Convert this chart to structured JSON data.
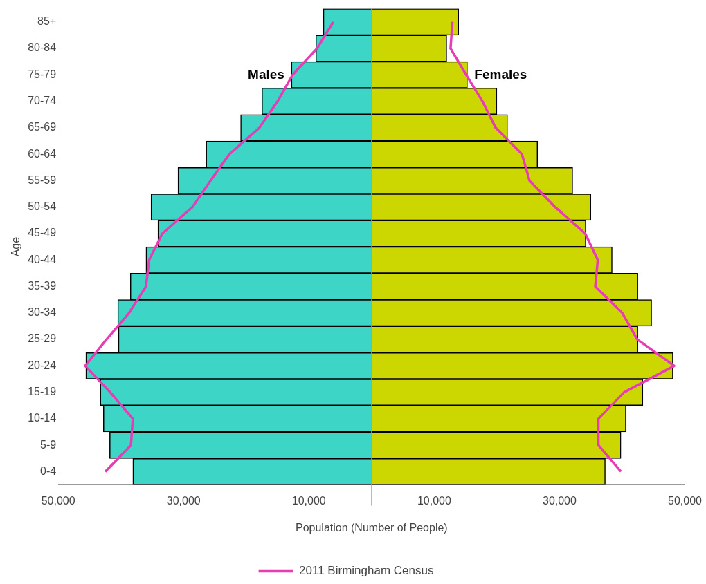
{
  "chart_data": {
    "type": "bar",
    "orientation": "horizontal",
    "stacked": true,
    "categories": [
      "85+",
      "80-84",
      "75-79",
      "70-74",
      "65-69",
      "60-64",
      "55-59",
      "50-54",
      "45-49",
      "40-44",
      "35-39",
      "30-34",
      "25-29",
      "20-24",
      "15-19",
      "10-14",
      "5-9",
      "0-4"
    ],
    "series": [
      {
        "name": "Males",
        "color": "#3dd6c6",
        "values": [
          -7700,
          -8900,
          -12800,
          -17500,
          -20900,
          -26400,
          -30900,
          -35200,
          -34100,
          -36000,
          -38500,
          -40500,
          -40400,
          -45600,
          -43300,
          -42800,
          -41800,
          -38100
        ]
      },
      {
        "name": "Females",
        "color": "#ccd600",
        "values": [
          13900,
          12000,
          15300,
          20000,
          21700,
          26500,
          32100,
          35000,
          34200,
          38400,
          42500,
          44700,
          42500,
          48100,
          43300,
          40600,
          39800,
          37300
        ]
      },
      {
        "name": "2011 Birmingham Census",
        "type": "line",
        "color": "#e83cb4",
        "values": [
          -6100,
          -8700,
          -12600,
          -15000,
          -17900,
          -22700,
          -25700,
          -28600,
          -33400,
          -35500,
          -36000,
          -38700,
          -42300,
          -45700,
          -41700,
          -38100,
          -38400,
          -42500
        ]
      },
      {
        "type": "line",
        "color": "#e83cb4",
        "values": [
          12900,
          12600,
          15100,
          17700,
          19800,
          24000,
          25200,
          29300,
          34100,
          36100,
          35700,
          40000,
          42400,
          48300,
          40300,
          36200,
          36200,
          39800
        ]
      }
    ],
    "xlabel": "Population (Number of People)",
    "ylabel": "Age",
    "xlim": [
      -50000,
      50000
    ],
    "xticks": [
      {
        "value": -50000,
        "label": "50,000"
      },
      {
        "value": -30000,
        "label": "30,000"
      },
      {
        "value": -10000,
        "label": "10,000"
      },
      {
        "value": 10000,
        "label": "10,000"
      },
      {
        "value": 30000,
        "label": "30,000"
      },
      {
        "value": 50000,
        "label": "50,000"
      }
    ],
    "grid": false,
    "legend": "bottom",
    "marker": "none",
    "line_style": "solid"
  }
}
